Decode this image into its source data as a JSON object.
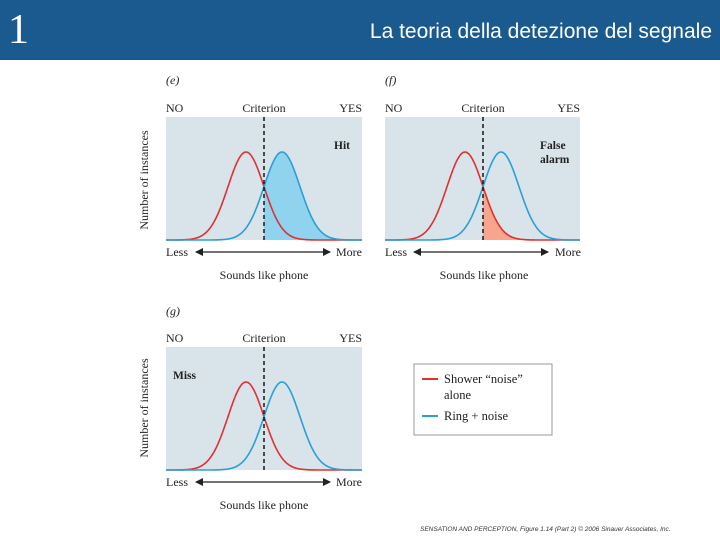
{
  "slide": {
    "number": "1",
    "title": "La teoria della detezione del segnale"
  },
  "panels": [
    {
      "id": "e",
      "letter": "(e)",
      "no": "NO",
      "criterion": "Criterion",
      "yes": "YES",
      "outcome": "Hit",
      "ylabel": "Number of instances",
      "less": "Less",
      "more": "More",
      "xlabel": "Sounds like phone",
      "shaded": "signal-right",
      "shade_color": "#8fd3ef"
    },
    {
      "id": "f",
      "letter": "(f)",
      "no": "NO",
      "criterion": "Criterion",
      "yes": "YES",
      "outcome_lines": [
        "False",
        "alarm"
      ],
      "less": "Less",
      "more": "More",
      "xlabel": "Sounds like phone",
      "shaded": "noise-right",
      "shade_color": "#f7a58d"
    },
    {
      "id": "g",
      "letter": "(g)",
      "no": "NO",
      "criterion": "Criterion",
      "yes": "YES",
      "outcome": "Miss",
      "ylabel": "Number of instances",
      "less": "Less",
      "more": "More",
      "xlabel": "Sounds like phone",
      "shaded": "none"
    }
  ],
  "legend": {
    "items": [
      {
        "lines": [
          "Shower “noise”",
          "alone"
        ],
        "color": "#e03030"
      },
      {
        "lines": [
          "Ring + noise"
        ],
        "color": "#2a9fd6"
      }
    ]
  },
  "credit": {
    "text": "SENSATION AND PERCEPTION, Figure 1.14 (Part 2) © 2006 Sinauer Associates, Inc."
  },
  "colors": {
    "header_bg": "#1b5a8e",
    "plot_bg": "#d9e3ea",
    "noise_curve": "#e03030",
    "signal_curve": "#2a9fd6"
  }
}
